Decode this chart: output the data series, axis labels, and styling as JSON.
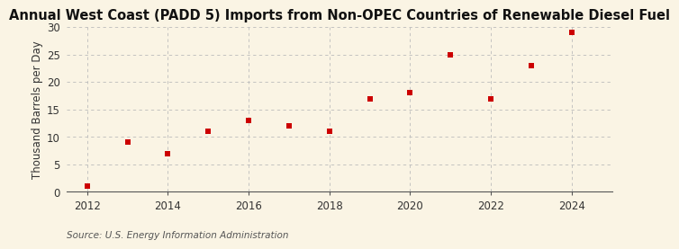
{
  "title": "Annual West Coast (PADD 5) Imports from Non-OPEC Countries of Renewable Diesel Fuel",
  "ylabel": "Thousand Barrels per Day",
  "source": "Source: U.S. Energy Information Administration",
  "x": [
    2012,
    2013,
    2014,
    2015,
    2016,
    2017,
    2018,
    2019,
    2020,
    2021,
    2022,
    2023,
    2024
  ],
  "y": [
    1.0,
    9.0,
    7.0,
    11.0,
    13.0,
    12.0,
    11.0,
    17.0,
    18.0,
    25.0,
    17.0,
    23.0,
    29.0
  ],
  "marker_color": "#cc0000",
  "marker": "s",
  "marker_size": 22,
  "background_color": "#faf4e4",
  "grid_color": "#bbbbbb",
  "xlim": [
    2011.5,
    2025.0
  ],
  "ylim": [
    0,
    30
  ],
  "yticks": [
    0,
    5,
    10,
    15,
    20,
    25,
    30
  ],
  "xticks": [
    2012,
    2014,
    2016,
    2018,
    2020,
    2022,
    2024
  ],
  "title_fontsize": 10.5,
  "label_fontsize": 8.5,
  "tick_fontsize": 8.5,
  "source_fontsize": 7.5
}
